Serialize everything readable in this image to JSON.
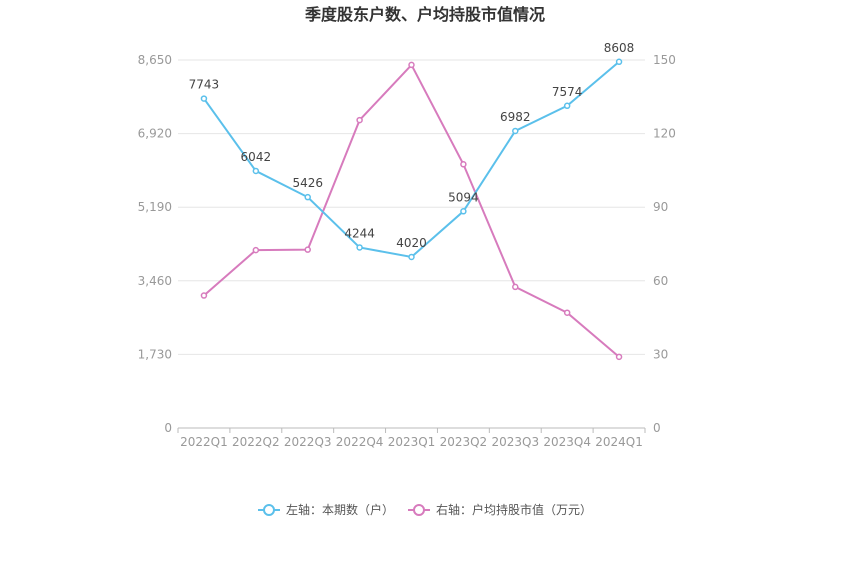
{
  "chart_data": {
    "type": "line",
    "title": "季度股东户数、户均持股市值情况",
    "categories": [
      "2022Q1",
      "2022Q2",
      "2022Q3",
      "2022Q4",
      "2023Q1",
      "2023Q2",
      "2023Q3",
      "2023Q4",
      "2024Q1"
    ],
    "left_axis": {
      "ticks": [
        "0",
        "1,730",
        "3,460",
        "5,190",
        "6,920",
        "8,650"
      ],
      "range": [
        0,
        8650
      ]
    },
    "right_axis": {
      "ticks": [
        "0",
        "30",
        "60",
        "90",
        "120",
        "150"
      ],
      "range": [
        0,
        150
      ]
    },
    "grid": true,
    "legend_position": "bottom",
    "series": [
      {
        "name": "左轴：本期数（户）",
        "axis": "left",
        "color": "#5bc0eb",
        "values": [
          7743,
          6042,
          5426,
          4244,
          4020,
          5094,
          6982,
          7574,
          8608
        ],
        "labels": [
          "7743",
          "6042",
          "5426",
          "4244",
          "4020",
          "5094",
          "6982",
          "7574",
          "8608"
        ]
      },
      {
        "name": "右轴：户均持股市值（万元）",
        "axis": "right",
        "color": "#d77bbd",
        "values": [
          54,
          72.5,
          72.7,
          125.5,
          148,
          107.5,
          57.5,
          47,
          29
        ]
      }
    ]
  }
}
